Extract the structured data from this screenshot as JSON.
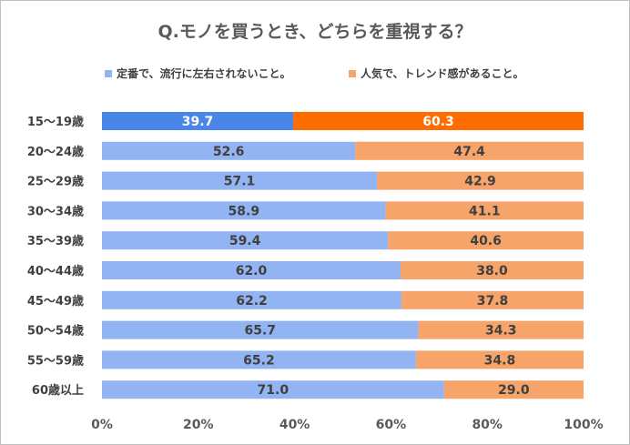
{
  "title": "Q.モノを買うとき、どちらを重視する？",
  "colors": {
    "series1": "#93b4f2",
    "series2": "#f7a46a",
    "series1_highlight": "#4a86e8",
    "series2_highlight": "#ff6d01"
  },
  "chart_data": {
    "type": "bar",
    "orientation": "horizontal",
    "stacked": "percent",
    "title": "Q.モノを買うとき、どちらを重視する？",
    "categories": [
      "15～19歳",
      "20～24歳",
      "25～29歳",
      "30～34歳",
      "35～39歳",
      "40～44歳",
      "45～49歳",
      "50～54歳",
      "55～59歳",
      "60歳以上"
    ],
    "series": [
      {
        "name": "定番で、流行に左右されないこと。",
        "values": [
          39.7,
          52.6,
          57.1,
          58.9,
          59.4,
          62.0,
          62.2,
          65.7,
          65.2,
          71.0
        ]
      },
      {
        "name": "人気で、トレンド感があること。",
        "values": [
          60.3,
          47.4,
          42.9,
          41.1,
          40.6,
          38.0,
          37.8,
          34.3,
          34.8,
          29.0
        ]
      }
    ],
    "highlight_category": "15～19歳",
    "xlim": [
      0,
      100
    ],
    "xticks": [
      "0%",
      "20%",
      "40%",
      "60%",
      "80%",
      "100%"
    ],
    "legend_position": "top",
    "grid": false
  }
}
